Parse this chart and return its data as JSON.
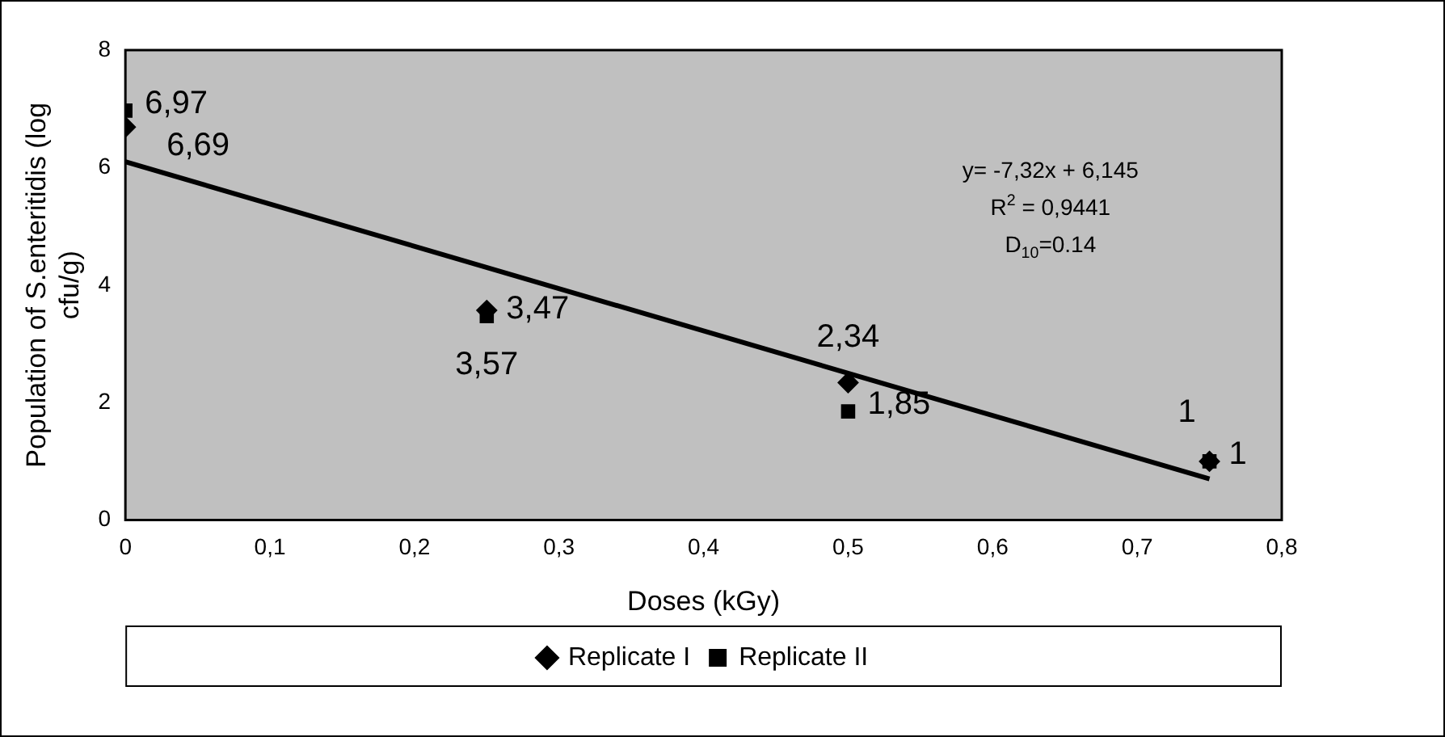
{
  "chart_data": {
    "type": "scatter",
    "xlabel": "Doses (kGy)",
    "ylabel": "Population of S.enteritidis (log cfu/g)",
    "xlim": [
      0,
      0.8
    ],
    "xticks": [
      0,
      {
        "value": 0.1,
        "label": "0,1"
      },
      {
        "value": 0.2,
        "label": "0,2"
      },
      {
        "value": 0.3,
        "label": "0,3"
      },
      {
        "value": 0.4,
        "label": "0,4"
      },
      {
        "value": 0.5,
        "label": "0,5"
      },
      {
        "value": 0.6,
        "label": "0,6"
      },
      {
        "value": 0.7,
        "label": "0,7"
      },
      {
        "value": 0.8,
        "label": "0,8"
      }
    ],
    "ylim": [
      0,
      8
    ],
    "yticks": [
      0,
      2,
      4,
      6,
      8
    ],
    "grid": false,
    "legend": "bottom",
    "x": [
      0,
      0.25,
      0.5,
      0.75
    ],
    "series": [
      {
        "name": "Replicate I",
        "color": "#000000",
        "marker": "diamond",
        "values": [
          6.69,
          3.57,
          2.34,
          1
        ],
        "value_labels": [
          "6,69",
          "3,57",
          "2,34",
          "1"
        ]
      },
      {
        "name": "Replicate II",
        "color": "#000000",
        "marker": "square",
        "values": [
          6.97,
          3.47,
          1.85,
          1
        ],
        "value_labels": [
          "6,97",
          "3,47",
          "1,85",
          "1"
        ]
      },
      {
        "type": "line",
        "color": "#000000",
        "marker": "none",
        "x": [
          0,
          0.75
        ],
        "values": [
          6.1,
          0.7
        ]
      }
    ],
    "annotations": [
      "y= -7,32x + 6,145",
      "R$^{2}$ = 0,9441",
      "D$_{10}$=0.14"
    ]
  }
}
